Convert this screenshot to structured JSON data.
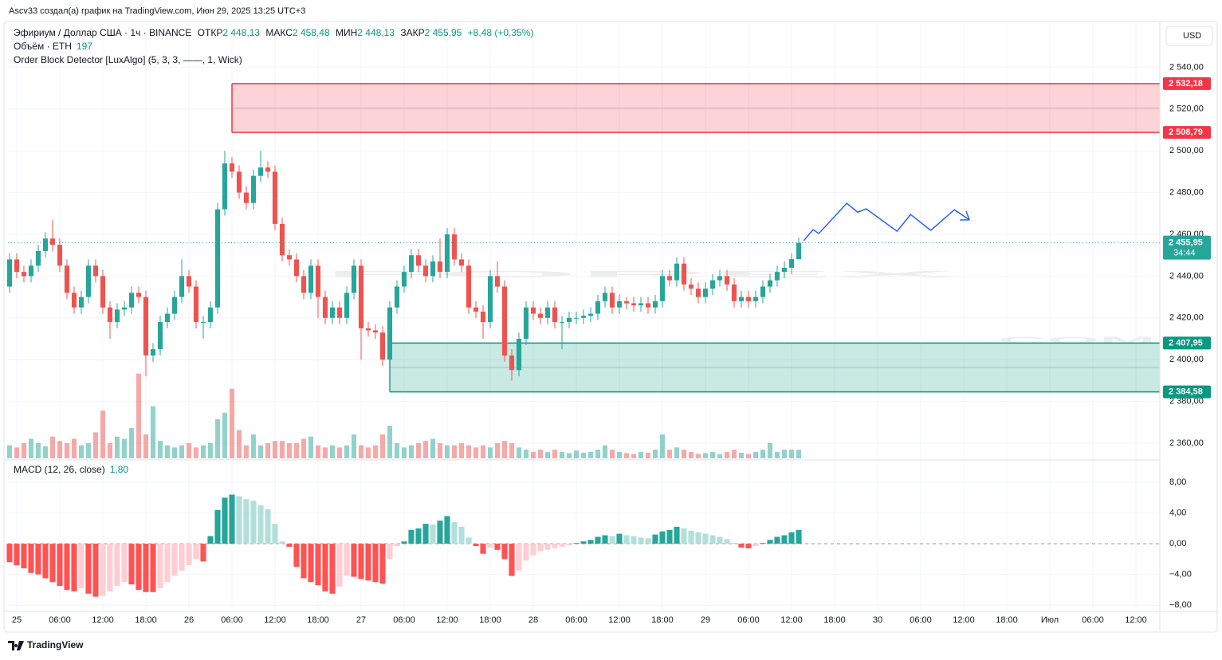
{
  "header": "Ascv33 создал(а) график на TradingView.com, Июн 29, 2025 13:25 UTC+3",
  "brand": "TradingView",
  "currency_button": "USD",
  "chart_data": {
    "type": "candlestick",
    "legend": {
      "symbol": "Эфириум / Доллар США · 1ч · BINANCE",
      "fields": [
        {
          "label": "ОТКР",
          "value": "2 448,13"
        },
        {
          "label": "МАКС",
          "value": "2 458,48"
        },
        {
          "label": "МИН",
          "value": "2 448,13"
        },
        {
          "label": "ЗАКР",
          "value": "2 455,95"
        }
      ],
      "change": "+8,48 (+0,35%)",
      "volume_name": "Объём · ETH",
      "volume_value": "197",
      "indicator": "Order Block Detector [LuxAlgo] (5, 3, 3, ——, 1, Wick)"
    },
    "watermark": {
      "text": "FOREX",
      "suffix": ".COM"
    },
    "up_color": "#26a69a",
    "down_color": "#ef5350",
    "volume_up_color": "#26a69a",
    "volume_down_color": "#ef5350",
    "xlim": [
      -1.22,
      159.33
    ],
    "xticks": [
      {
        "value": 0,
        "label": "25"
      },
      {
        "value": 6,
        "label": "06:00"
      },
      {
        "value": 12,
        "label": "12:00"
      },
      {
        "value": 18,
        "label": "18:00"
      },
      {
        "value": 24,
        "label": "26"
      },
      {
        "value": 30,
        "label": "06:00"
      },
      {
        "value": 36,
        "label": "12:00"
      },
      {
        "value": 42,
        "label": "18:00"
      },
      {
        "value": 48,
        "label": "27"
      },
      {
        "value": 54,
        "label": "06:00"
      },
      {
        "value": 60,
        "label": "12:00"
      },
      {
        "value": 66,
        "label": "18:00"
      },
      {
        "value": 72,
        "label": "28"
      },
      {
        "value": 78,
        "label": "06:00"
      },
      {
        "value": 84,
        "label": "12:00"
      },
      {
        "value": 90,
        "label": "18:00"
      },
      {
        "value": 96,
        "label": "29"
      },
      {
        "value": 102,
        "label": "06:00"
      },
      {
        "value": 108,
        "label": "12:00"
      },
      {
        "value": 114,
        "label": "18:00"
      },
      {
        "value": 120,
        "label": "30"
      },
      {
        "value": 126,
        "label": "06:00"
      },
      {
        "value": 132,
        "label": "12:00"
      },
      {
        "value": 138,
        "label": "18:00"
      },
      {
        "value": 144,
        "label": "Июл"
      },
      {
        "value": 150,
        "label": "06:00"
      },
      {
        "value": 156,
        "label": "12:00"
      }
    ],
    "ylim": [
      2352.75,
      2560.76
    ],
    "yticks": [
      {
        "value": 2360,
        "label": "2 360,00"
      },
      {
        "value": 2380,
        "label": "2 380,00"
      },
      {
        "value": 2400,
        "label": "2 400,00"
      },
      {
        "value": 2420,
        "label": "2 420,00"
      },
      {
        "value": 2440,
        "label": "2 440,00"
      },
      {
        "value": 2460,
        "label": "2 460,00"
      },
      {
        "value": 2480,
        "label": "2 480,00"
      },
      {
        "value": 2500,
        "label": "2 500,00"
      },
      {
        "value": 2520,
        "label": "2 520,00"
      },
      {
        "value": 2540,
        "label": "2 540,00"
      }
    ],
    "grid": true,
    "volume_ylim": [
      0,
      10000
    ],
    "x": [
      -1,
      0,
      1,
      2,
      3,
      4,
      5,
      6,
      7,
      8,
      9,
      10,
      11,
      12,
      13,
      14,
      15,
      16,
      17,
      18,
      19,
      20,
      21,
      22,
      23,
      24,
      25,
      26,
      27,
      28,
      29,
      30,
      31,
      32,
      33,
      34,
      35,
      36,
      37,
      38,
      39,
      40,
      41,
      42,
      43,
      44,
      45,
      46,
      47,
      48,
      49,
      50,
      51,
      52,
      53,
      54,
      55,
      56,
      57,
      58,
      59,
      60,
      61,
      62,
      63,
      64,
      65,
      66,
      67,
      68,
      69,
      70,
      71,
      72,
      73,
      74,
      75,
      76,
      77,
      78,
      79,
      80,
      81,
      82,
      83,
      84,
      85,
      86,
      87,
      88,
      89,
      90,
      91,
      92,
      93,
      94,
      95,
      96,
      97,
      98,
      99,
      100,
      101,
      102,
      103,
      104,
      105,
      106,
      107,
      108,
      109
    ],
    "open": [
      2435,
      2448,
      2442,
      2440,
      2445,
      2452,
      2458,
      2455,
      2445,
      2432,
      2425,
      2430,
      2445,
      2440,
      2425,
      2418,
      2424,
      2425,
      2432,
      2430,
      2402,
      2405,
      2418,
      2422,
      2430,
      2440,
      2435,
      2418,
      2418,
      2425,
      2472,
      2494,
      2490,
      2480,
      2475,
      2488,
      2492,
      2490,
      2465,
      2450,
      2448,
      2440,
      2432,
      2445,
      2430,
      2420,
      2425,
      2420,
      2432,
      2445,
      2415,
      2414,
      2413,
      2400,
      2425,
      2435,
      2442,
      2450,
      2445,
      2440,
      2447,
      2442,
      2460,
      2448,
      2445,
      2425,
      2423,
      2418,
      2440,
      2435,
      2402,
      2395,
      2410,
      2425,
      2422,
      2420,
      2425,
      2418,
      2418,
      2420,
      2420,
      2421,
      2422,
      2428,
      2432,
      2425,
      2428,
      2427,
      2426,
      2427,
      2425,
      2428,
      2440,
      2438,
      2446,
      2436,
      2434,
      2430,
      2434,
      2438,
      2440,
      2436,
      2428,
      2430,
      2428,
      2430,
      2435,
      2438,
      2442,
      2444,
      2448.13
    ],
    "high": [
      2451,
      2451,
      2445,
      2448,
      2455,
      2461,
      2467,
      2458,
      2448,
      2435,
      2433,
      2448,
      2448,
      2443,
      2428,
      2427,
      2428,
      2435,
      2435,
      2433,
      2408,
      2421,
      2425,
      2433,
      2448,
      2443,
      2438,
      2421,
      2428,
      2475,
      2500,
      2497,
      2493,
      2483,
      2491,
      2500,
      2495,
      2493,
      2468,
      2453,
      2451,
      2443,
      2448,
      2448,
      2433,
      2428,
      2428,
      2435,
      2448,
      2448,
      2418,
      2417,
      2416,
      2428,
      2438,
      2445,
      2453,
      2453,
      2448,
      2450,
      2458,
      2463,
      2463,
      2451,
      2448,
      2428,
      2426,
      2443,
      2447,
      2438,
      2405,
      2413,
      2428,
      2428,
      2425,
      2428,
      2428,
      2421,
      2423,
      2423,
      2424,
      2425,
      2431,
      2435,
      2435,
      2431,
      2430,
      2430,
      2430,
      2430,
      2431,
      2443,
      2443,
      2449,
      2449,
      2439,
      2437,
      2437,
      2441,
      2443,
      2443,
      2439,
      2433,
      2433,
      2433,
      2438,
      2441,
      2445,
      2447,
      2451,
      2458.48
    ],
    "low": [
      2432,
      2439,
      2437,
      2437,
      2442,
      2449,
      2452,
      2442,
      2429,
      2422,
      2422,
      2427,
      2437,
      2422,
      2410,
      2415,
      2421,
      2422,
      2427,
      2392,
      2399,
      2402,
      2415,
      2419,
      2427,
      2432,
      2415,
      2410,
      2415,
      2422,
      2469,
      2487,
      2477,
      2472,
      2472,
      2485,
      2487,
      2462,
      2447,
      2445,
      2437,
      2429,
      2429,
      2420,
      2417,
      2417,
      2417,
      2417,
      2429,
      2400,
      2411,
      2410,
      2397,
      2385,
      2422,
      2432,
      2439,
      2442,
      2437,
      2437,
      2439,
      2439,
      2445,
      2442,
      2422,
      2420,
      2410,
      2415,
      2432,
      2399,
      2390,
      2392,
      2407,
      2419,
      2417,
      2417,
      2415,
      2405,
      2415,
      2417,
      2417,
      2418,
      2419,
      2425,
      2422,
      2422,
      2424,
      2423,
      2423,
      2422,
      2422,
      2425,
      2435,
      2435,
      2433,
      2431,
      2427,
      2427,
      2431,
      2435,
      2433,
      2425,
      2425,
      2425,
      2425,
      2427,
      2432,
      2435,
      2439,
      2441,
      2448.13
    ],
    "close": [
      2448,
      2442,
      2440,
      2445,
      2452,
      2458,
      2455,
      2445,
      2432,
      2425,
      2430,
      2445,
      2440,
      2425,
      2418,
      2424,
      2425,
      2432,
      2430,
      2402,
      2405,
      2418,
      2422,
      2430,
      2440,
      2435,
      2418,
      2418,
      2425,
      2472,
      2494,
      2490,
      2480,
      2475,
      2488,
      2492,
      2490,
      2465,
      2450,
      2448,
      2440,
      2432,
      2445,
      2430,
      2420,
      2425,
      2420,
      2432,
      2445,
      2415,
      2414,
      2413,
      2400,
      2425,
      2435,
      2442,
      2450,
      2445,
      2440,
      2447,
      2442,
      2460,
      2448,
      2445,
      2425,
      2423,
      2418,
      2440,
      2435,
      2402,
      2395,
      2410,
      2425,
      2422,
      2420,
      2425,
      2418,
      2418,
      2420,
      2420,
      2421,
      2422,
      2428,
      2432,
      2425,
      2428,
      2427,
      2426,
      2427,
      2425,
      2428,
      2440,
      2438,
      2446,
      2436,
      2434,
      2430,
      2434,
      2438,
      2440,
      2436,
      2428,
      2430,
      2428,
      2430,
      2435,
      2438,
      2442,
      2444,
      2448.13,
      2455.95
    ],
    "volume": [
      300,
      250,
      350,
      450,
      350,
      280,
      500,
      400,
      350,
      450,
      300,
      350,
      600,
      1100,
      350,
      500,
      450,
      700,
      1950,
      550,
      1200,
      400,
      300,
      250,
      300,
      350,
      250,
      300,
      350,
      900,
      1050,
      1600,
      650,
      300,
      550,
      300,
      350,
      400,
      400,
      350,
      350,
      450,
      500,
      300,
      250,
      300,
      250,
      300,
      550,
      300,
      250,
      300,
      550,
      750,
      350,
      250,
      300,
      350,
      400,
      450,
      350,
      300,
      300,
      350,
      300,
      250,
      300,
      250,
      350,
      400,
      350,
      250,
      200,
      150,
      200,
      150,
      200,
      150,
      120,
      180,
      130,
      150,
      200,
      300,
      200,
      150,
      120,
      100,
      150,
      130,
      200,
      550,
      200,
      250,
      200,
      150,
      100,
      120,
      150,
      100,
      150,
      200,
      130,
      100,
      150,
      200,
      350,
      150,
      200,
      200,
      197
    ],
    "last_price": {
      "value": 2455.95,
      "label": "2 455,95",
      "countdown": "34:44",
      "color": "#26a69a"
    },
    "order_blocks": [
      {
        "top": 2532.18,
        "bottom": 2508.79,
        "start": 30,
        "color": "#f23645",
        "top_label": "2 532,18",
        "bottom_label": "2 508,79"
      },
      {
        "top": 2407.95,
        "bottom": 2384.58,
        "start": 52,
        "color": "#089981",
        "top_label": "2 407,95",
        "bottom_label": "2 384,58"
      }
    ],
    "forecast": {
      "color": "#2962ff",
      "x": [
        109.7,
        111.0,
        111.8,
        115.7,
        117.2,
        118.4,
        122.7,
        124.6,
        127.4,
        130.7,
        132.8
      ],
      "y": [
        2457.0,
        2462.3,
        2460.4,
        2474.9,
        2470.6,
        2472.2,
        2461.5,
        2469.5,
        2461.9,
        2471.8,
        2466.9
      ]
    },
    "macd": {
      "name": "MACD (12, 26, close)",
      "value_label": "1,80",
      "colors": {
        "grow_above": "#26a69a",
        "fall_above": "#b2dfdb",
        "grow_below": "#ffcdd2",
        "fall_below": "#ff5252"
      },
      "ylim": [
        -8.6,
        10.6
      ],
      "yticks": [
        {
          "value": 8,
          "label": "8,00"
        },
        {
          "value": 4,
          "label": "4,00"
        },
        {
          "value": 0,
          "label": "0,00"
        },
        {
          "value": -4,
          "label": "−4,00"
        },
        {
          "value": -8,
          "label": "−8,00"
        }
      ],
      "values": [
        -2.4,
        -2.8,
        -3.2,
        -3.8,
        -4.0,
        -4.5,
        -5.0,
        -5.5,
        -6.0,
        -6.2,
        -5.8,
        -6.5,
        -6.9,
        -6.8,
        -6.2,
        -5.5,
        -5.0,
        -5.3,
        -6.0,
        -6.3,
        -6.3,
        -5.8,
        -5.0,
        -4.2,
        -3.5,
        -2.8,
        -2.0,
        -2.3,
        1.0,
        4.4,
        6.0,
        6.4,
        6.2,
        5.8,
        5.6,
        5.0,
        4.5,
        2.6,
        0.3,
        -0.4,
        -3.0,
        -4.5,
        -5.0,
        -5.4,
        -6.2,
        -6.5,
        -5.6,
        -4.2,
        -4.3,
        -4.6,
        -4.8,
        -5.0,
        -5.2,
        -2.0,
        -0.3,
        0.3,
        1.8,
        2.0,
        2.6,
        2.5,
        3.0,
        3.6,
        2.8,
        2.2,
        0.8,
        -0.3,
        -1.3,
        -0.5,
        -0.8,
        -2.0,
        -4.2,
        -3.5,
        -2.2,
        -1.5,
        -1.0,
        -0.8,
        -0.6,
        -0.4,
        -0.2,
        0.1,
        0.3,
        0.5,
        0.9,
        1.1,
        1.0,
        1.3,
        1.1,
        1.0,
        0.8,
        0.7,
        1.2,
        1.6,
        1.8,
        2.2,
        2.0,
        1.7,
        1.5,
        1.3,
        1.1,
        0.9,
        0.6,
        0.1,
        -0.5,
        -0.6,
        -0.3,
        0.1,
        0.5,
        0.9,
        1.1,
        1.5,
        1.8
      ]
    }
  }
}
